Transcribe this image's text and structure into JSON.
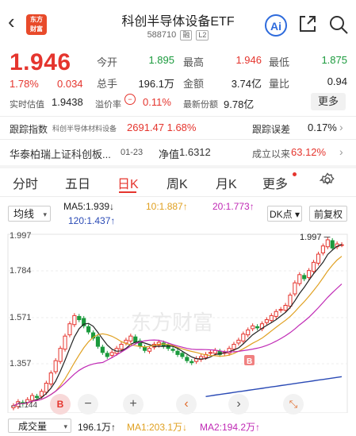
{
  "header": {
    "logo_line1": "东方",
    "logo_line2": "财富",
    "title": "科创半导体设备ETF",
    "code": "588710",
    "tag1": "融",
    "tag2": "L2",
    "ai_label": "Ai"
  },
  "quote": {
    "price": "1.946",
    "pct": "1.78%",
    "change": "0.034",
    "open_label": "今开",
    "open": "1.895",
    "high_label": "最高",
    "high": "1.946",
    "low_label": "最低",
    "low": "1.875",
    "volume_label": "总手",
    "volume": "196.1万",
    "amount_label": "金额",
    "amount": "3.74亿",
    "ratio_label": "量比",
    "ratio": "0.94",
    "est_label": "实时估值",
    "est": "1.9438",
    "premium_label": "溢价率",
    "premium": "0.11%",
    "shares_label": "最新份额",
    "shares": "9.78亿",
    "more_label": "更多"
  },
  "tracking": {
    "label": "跟踪指数",
    "index_name": "科创半导体材料设备",
    "index_value": "2691.47  1.68%",
    "error_label": "跟踪误差",
    "error_value": "0.17%"
  },
  "fund": {
    "name": "华泰柏瑞上证科创板...",
    "date": "01-23",
    "nav_label": "净值",
    "nav": "1.6312",
    "since_label": "成立以来",
    "since": "63.12%"
  },
  "tabs": [
    {
      "label": "分时"
    },
    {
      "label": "五日"
    },
    {
      "label": "日K"
    },
    {
      "label": "周K"
    },
    {
      "label": "月K"
    },
    {
      "label": "更多"
    }
  ],
  "chart_controls": {
    "line_select": "均线",
    "ma5": "MA5:1.939↓",
    "ma10": "10:1.887↑",
    "ma20": "20:1.773↑",
    "ma120": "120:1.437↑",
    "dk_label": "DK点",
    "adjust_label": "前复权"
  },
  "chart_labels": {
    "y_top": "1.997",
    "y2": "1.784",
    "y3": "1.571",
    "y4": "1.357",
    "y_bottom": "1.144",
    "max_marker": "1.997",
    "min_marker": "1.144",
    "watermark": "东方财富"
  },
  "volume_row": {
    "select": "成交量",
    "value": "196.1万↑",
    "ma1": "MA1:203.1万↓",
    "ma2": "MA2:194.2万↑"
  },
  "colors": {
    "up": "#e5352e",
    "down": "#1a9a3c",
    "ma5": "#222222",
    "ma10": "#e0a020",
    "ma20": "#c02ab5",
    "ma120": "#2a4ab5"
  },
  "chart_data": {
    "type": "candlestick",
    "y_range": [
      1.144,
      1.997
    ],
    "closes": [
      1.16,
      1.18,
      1.17,
      1.19,
      1.21,
      1.2,
      1.23,
      1.27,
      1.32,
      1.38,
      1.44,
      1.5,
      1.56,
      1.6,
      1.58,
      1.55,
      1.52,
      1.49,
      1.45,
      1.42,
      1.4,
      1.42,
      1.44,
      1.46,
      1.48,
      1.5,
      1.47,
      1.45,
      1.43,
      1.44,
      1.46,
      1.47,
      1.45,
      1.44,
      1.43,
      1.41,
      1.4,
      1.38,
      1.37,
      1.39,
      1.4,
      1.41,
      1.42,
      1.43,
      1.41,
      1.42,
      1.44,
      1.46,
      1.48,
      1.51,
      1.53,
      1.55,
      1.54,
      1.56,
      1.58,
      1.6,
      1.62,
      1.63,
      1.65,
      1.7,
      1.76,
      1.8,
      1.78,
      1.82,
      1.86,
      1.9,
      1.94,
      1.97,
      1.93,
      1.95,
      1.946
    ]
  }
}
